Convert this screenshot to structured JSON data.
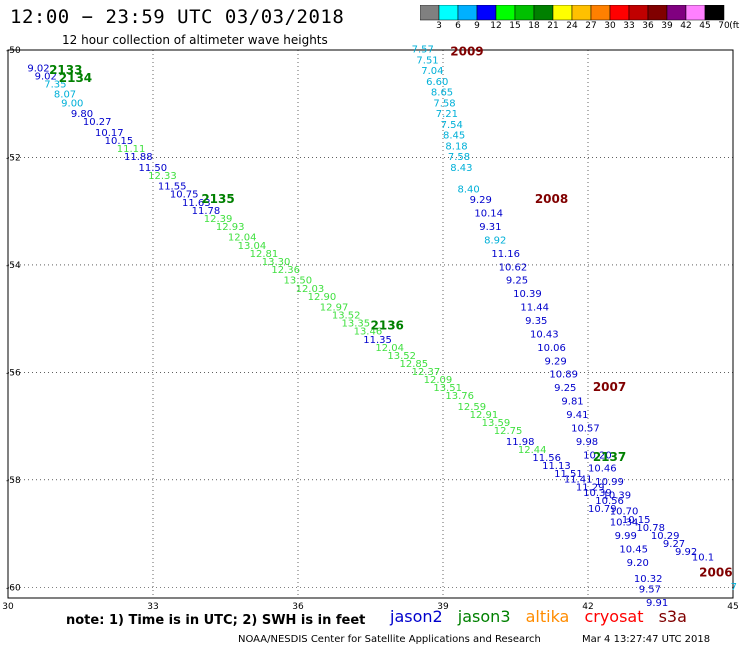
{
  "header": {
    "title": "12:00 − 23:59 UTC 03/03/2018",
    "subtitle": "12 hour collection of altimeter wave heights"
  },
  "colorbar": {
    "labels": [
      "3",
      "6",
      "9",
      "12",
      "15",
      "18",
      "21",
      "24",
      "27",
      "30",
      "33",
      "36",
      "39",
      "42",
      "45",
      "70"
    ],
    "unit": "(ft)",
    "colors": [
      "#808080",
      "#00ffff",
      "#00b0ff",
      "#0000ff",
      "#00ff00",
      "#00c000",
      "#008000",
      "#ffff00",
      "#ffc000",
      "#ff8000",
      "#ff0000",
      "#c00000",
      "#800000",
      "#800080",
      "#ff80ff",
      "#000000"
    ]
  },
  "axes": {
    "x_ticks": [
      30,
      33,
      36,
      39,
      42,
      45
    ],
    "y_ticks": [
      -50,
      -52,
      -54,
      -56,
      -58,
      -60
    ],
    "xlim": [
      30,
      45
    ],
    "ylim": [
      -60.2,
      -50
    ]
  },
  "satellite_colors": {
    "jason2": "#0000cc",
    "jason3": "#008000",
    "altika": "#ff8c00",
    "cryosat": "#ff0000",
    "s3a": "#800000"
  },
  "value_colors": {
    "cyan": "#00b0d8",
    "blue": "#0000cc",
    "green": "#40e040"
  },
  "passes": [
    {
      "label": "2133",
      "sat": "jason3",
      "lon": 30.85,
      "lat": -50.45
    },
    {
      "label": "2134",
      "sat": "jason3",
      "lon": 31.05,
      "lat": -50.6
    },
    {
      "label": "2135",
      "sat": "jason3",
      "lon": 34.0,
      "lat": -52.85
    },
    {
      "label": "2136",
      "sat": "jason3",
      "lon": 37.5,
      "lat": -55.2
    },
    {
      "label": "2137",
      "sat": "jason3",
      "lon": 42.1,
      "lat": -57.65
    },
    {
      "label": "2009",
      "sat": "s3a",
      "lon": 39.15,
      "lat": -50.1
    },
    {
      "label": "2008",
      "sat": "s3a",
      "lon": 40.9,
      "lat": -52.85
    },
    {
      "label": "2007",
      "sat": "s3a",
      "lon": 42.1,
      "lat": -56.35
    },
    {
      "label": "2006",
      "sat": "s3a",
      "lon": 44.3,
      "lat": -59.8
    }
  ],
  "tracks": [
    {
      "color": "blue",
      "points": [
        [
          30.4,
          -50.4,
          "9.02"
        ],
        [
          30.55,
          -50.55,
          "9.02"
        ]
      ]
    },
    {
      "color": "cyan",
      "points": [
        [
          30.75,
          -50.7,
          "7.35"
        ],
        [
          30.95,
          -50.88,
          "8.07"
        ],
        [
          31.1,
          -51.05,
          "9.00"
        ]
      ]
    },
    {
      "color": "blue",
      "points": [
        [
          31.3,
          -51.25,
          "9.80"
        ],
        [
          31.55,
          -51.4,
          "10.27"
        ],
        [
          31.8,
          -51.6,
          "10.17"
        ],
        [
          32.0,
          -51.75,
          "10.15"
        ]
      ]
    },
    {
      "color": "green",
      "points": [
        [
          32.25,
          -51.9,
          "11.11"
        ]
      ]
    },
    {
      "color": "blue",
      "points": [
        [
          32.4,
          -52.05,
          "11.88"
        ],
        [
          32.7,
          -52.25,
          "11.50"
        ]
      ]
    },
    {
      "color": "green",
      "points": [
        [
          32.9,
          -52.4,
          "12.33"
        ]
      ]
    },
    {
      "color": "blue",
      "points": [
        [
          33.1,
          -52.6,
          "11.55"
        ],
        [
          33.35,
          -52.75,
          "10.75"
        ],
        [
          33.6,
          -52.9,
          "11.63"
        ],
        [
          33.8,
          -53.05,
          "11.78"
        ]
      ]
    },
    {
      "color": "green",
      "points": [
        [
          34.05,
          -53.2,
          "12.39"
        ],
        [
          34.3,
          -53.35,
          "12.93"
        ],
        [
          34.55,
          -53.55,
          "12.04"
        ],
        [
          34.75,
          -53.7,
          "13.04"
        ],
        [
          35.0,
          -53.85,
          "12.81"
        ],
        [
          35.25,
          -54.0,
          "13.30"
        ],
        [
          35.45,
          -54.15,
          "12.36"
        ],
        [
          35.7,
          -54.35,
          "13.50"
        ],
        [
          35.95,
          -54.5,
          "12.03"
        ],
        [
          36.2,
          -54.65,
          "12.90"
        ],
        [
          36.45,
          -54.85,
          "12.97"
        ],
        [
          36.7,
          -55.0,
          "13.52"
        ],
        [
          36.9,
          -55.15,
          "13.35"
        ],
        [
          37.15,
          -55.3,
          "13.46"
        ]
      ]
    },
    {
      "color": "blue",
      "points": [
        [
          37.35,
          -55.45,
          "11.35"
        ]
      ]
    },
    {
      "color": "green",
      "points": [
        [
          37.6,
          -55.6,
          "12.04"
        ],
        [
          37.85,
          -55.75,
          "13.52"
        ],
        [
          38.1,
          -55.9,
          "12.85"
        ],
        [
          38.35,
          -56.05,
          "12.37"
        ],
        [
          38.6,
          -56.2,
          "12.09"
        ],
        [
          38.8,
          -56.35,
          "13.51"
        ],
        [
          39.05,
          -56.5,
          "13.76"
        ],
        [
          39.3,
          -56.7,
          "12.59"
        ],
        [
          39.55,
          -56.85,
          "12.91"
        ],
        [
          39.8,
          -57.0,
          "13.59"
        ],
        [
          40.05,
          -57.15,
          "12.75"
        ]
      ]
    },
    {
      "color": "blue",
      "points": [
        [
          40.3,
          -57.35,
          "11.98"
        ]
      ]
    },
    {
      "color": "green",
      "points": [
        [
          40.55,
          -57.5,
          "12.44"
        ]
      ]
    },
    {
      "color": "blue",
      "points": [
        [
          40.85,
          -57.65,
          "11.56"
        ],
        [
          41.05,
          -57.8,
          "11.13"
        ],
        [
          41.3,
          -57.95,
          "11.51"
        ],
        [
          41.5,
          -58.05,
          "11.41"
        ],
        [
          41.75,
          -58.2,
          "11.29"
        ],
        [
          41.9,
          -58.3,
          "10.39"
        ],
        [
          42.15,
          -58.45,
          "10.56"
        ],
        [
          42.0,
          -58.6,
          "10.79"
        ],
        [
          42.45,
          -58.65,
          "10.70"
        ],
        [
          42.7,
          -58.8,
          "10.15"
        ],
        [
          43.0,
          -58.95,
          "10.78"
        ],
        [
          43.3,
          -59.1,
          "10.29"
        ],
        [
          43.55,
          -59.25,
          "9.27"
        ],
        [
          43.8,
          -59.4,
          "9.92"
        ],
        [
          44.15,
          -59.5,
          "10.1"
        ]
      ]
    },
    {
      "color": "cyan",
      "points": [
        [
          38.35,
          -50.05,
          "7.57"
        ],
        [
          38.45,
          -50.25,
          "7.51"
        ],
        [
          38.55,
          -50.45,
          "7.04"
        ],
        [
          38.65,
          -50.65,
          "6.60"
        ],
        [
          38.75,
          -50.85,
          "8.65"
        ],
        [
          38.8,
          -51.05,
          "7.58"
        ],
        [
          38.85,
          -51.25,
          "7.21"
        ],
        [
          38.95,
          -51.45,
          "7.54"
        ],
        [
          39.0,
          -51.65,
          "8.45"
        ],
        [
          39.05,
          -51.85,
          "8.18"
        ],
        [
          39.1,
          -52.05,
          "7.58"
        ],
        [
          39.15,
          -52.25,
          "8.43"
        ],
        [
          39.3,
          -52.65,
          "8.40"
        ]
      ]
    },
    {
      "color": "blue",
      "points": [
        [
          39.55,
          -52.85,
          "9.29"
        ],
        [
          39.65,
          -53.1,
          "10.14"
        ],
        [
          39.75,
          -53.35,
          "9.31"
        ]
      ]
    },
    {
      "color": "cyan",
      "points": [
        [
          39.85,
          -53.6,
          "8.92"
        ]
      ]
    },
    {
      "color": "blue",
      "points": [
        [
          40.0,
          -53.85,
          "11.16"
        ],
        [
          40.15,
          -54.1,
          "10.62"
        ],
        [
          40.3,
          -54.35,
          "9.25"
        ],
        [
          40.45,
          -54.6,
          "10.39"
        ],
        [
          40.6,
          -54.85,
          "11.44"
        ],
        [
          40.7,
          -55.1,
          "9.35"
        ],
        [
          40.8,
          -55.35,
          "10.43"
        ],
        [
          40.95,
          -55.6,
          "10.06"
        ],
        [
          41.1,
          -55.85,
          "9.29"
        ],
        [
          41.2,
          -56.1,
          "10.89"
        ],
        [
          41.3,
          -56.35,
          "9.25"
        ],
        [
          41.45,
          -56.6,
          "9.81"
        ],
        [
          41.55,
          -56.85,
          "9.41"
        ],
        [
          41.65,
          -57.1,
          "10.57"
        ],
        [
          41.75,
          -57.35,
          "9.98"
        ],
        [
          41.9,
          -57.6,
          "10.20"
        ],
        [
          42.0,
          -57.85,
          "10.46"
        ],
        [
          42.15,
          -58.1,
          "10.99"
        ],
        [
          42.3,
          -58.35,
          "10.39"
        ],
        [
          42.45,
          -58.85,
          "10.34"
        ],
        [
          42.55,
          -59.1,
          "9.99"
        ],
        [
          42.65,
          -59.35,
          "10.45"
        ],
        [
          42.8,
          -59.6,
          "9.20"
        ],
        [
          42.95,
          -59.9,
          "10.32"
        ],
        [
          43.05,
          -60.1,
          "9.57"
        ],
        [
          43.2,
          -60.35,
          "9.91"
        ]
      ]
    },
    {
      "color": "cyan",
      "points": [
        [
          44.95,
          -60.05,
          "7"
        ]
      ]
    }
  ],
  "footer": {
    "note": "note:  1) Time is in UTC;  2) SWH is in feet",
    "legend": [
      "jason2",
      "jason3",
      "altika",
      "cryosat",
      "s3a"
    ],
    "credit": "NOAA/NESDIS Center for Satellite Applications and Research",
    "timestamp": "Mar  4 13:27:47 UTC 2018"
  }
}
